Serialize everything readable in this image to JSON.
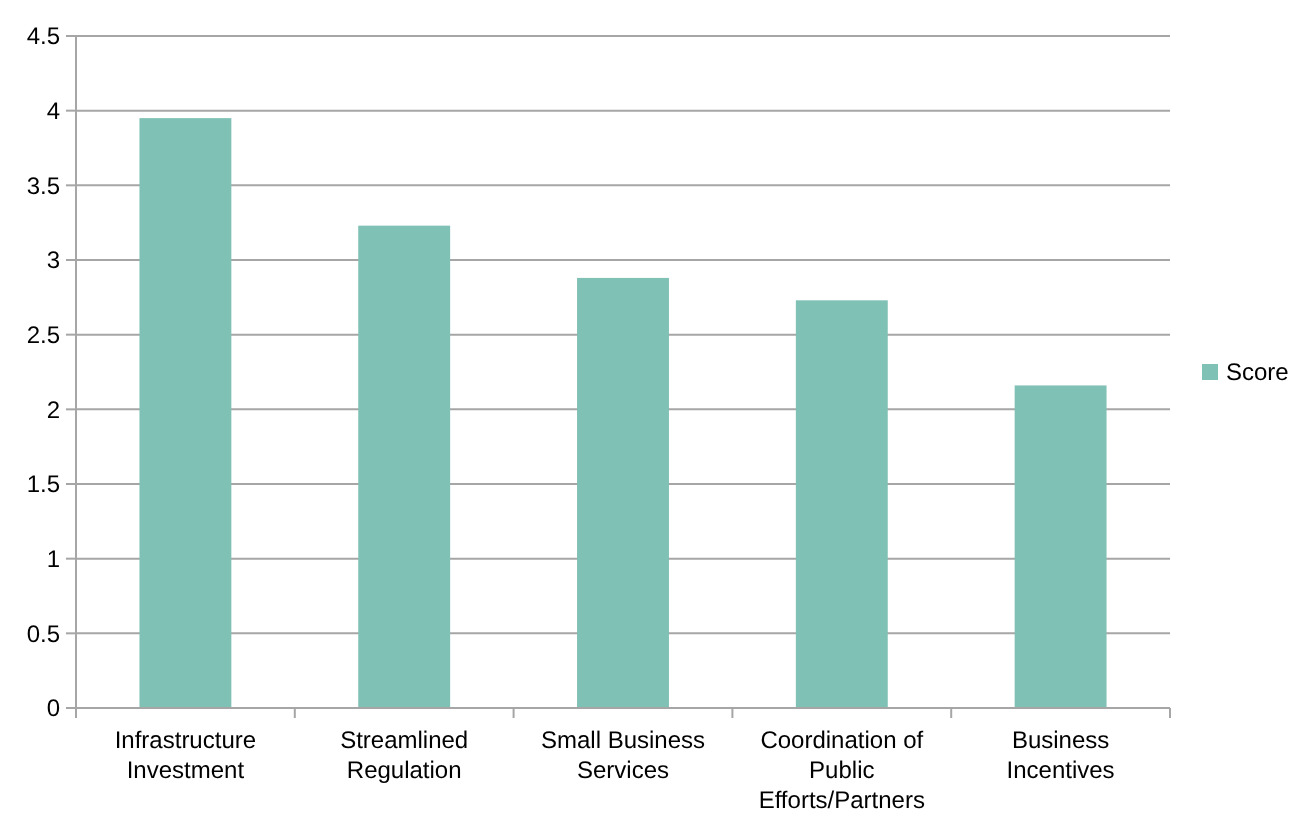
{
  "chart_data": {
    "type": "bar",
    "categories": [
      "Infrastructure Investment",
      "Streamlined Regulation",
      "Small Business Services",
      "Coordination of Public Efforts/Partners",
      "Business Incentives"
    ],
    "series": [
      {
        "name": "Score",
        "color": "#7fc1b5",
        "values": [
          3.95,
          3.23,
          2.88,
          2.73,
          2.16
        ]
      }
    ],
    "ylim": [
      0,
      4.5
    ],
    "yticks": [
      0,
      0.5,
      1,
      1.5,
      2,
      2.5,
      3,
      3.5,
      4,
      4.5
    ],
    "grid": "y",
    "legend": "right"
  }
}
